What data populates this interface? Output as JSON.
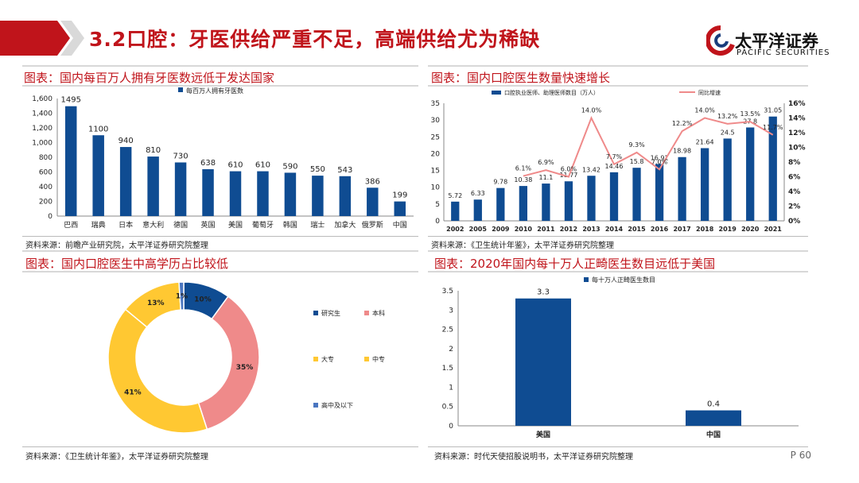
{
  "header": {
    "title": "3.2口腔：牙医供给严重不足，高端供给尤为稀缺",
    "logo_name": "太平洋证券",
    "logo_sub": "PACIFIC SECURITIES"
  },
  "panels": [
    {
      "title": "图表：国内每百万人拥有牙医数远低于发达国家",
      "source": "资料来源：前瞻产业研究院，太平洋证券研究院整理"
    },
    {
      "title": "图表：国内口腔医生数量快速增长",
      "source": "资料来源：《卫生统计年鉴》，太平洋证券研究院整理"
    },
    {
      "title": "图表：国内口腔医生中高学历占比较低",
      "source": "资料来源：《卫生统计年鉴》，太平洋证券研究院整理"
    },
    {
      "title": "图表：2020年国内每十万人正畸医生数目远低于美国",
      "source": "资料来源：时代天使招股说明书，太平洋证券研究院整理"
    }
  ],
  "page_number": "P 60",
  "colors": {
    "accent_red": "#c0141b",
    "bar_blue": "#0f4c92",
    "line_pink": "#ef8a8a",
    "pie_yellow": "#ffc832"
  },
  "chart_data": [
    {
      "type": "bar",
      "title": "",
      "categories": [
        "巴西",
        "瑞典",
        "日本",
        "意大利",
        "德国",
        "英国",
        "美国",
        "葡萄牙",
        "韩国",
        "瑞士",
        "加拿大",
        "俄罗斯",
        "中国"
      ],
      "series": [
        {
          "name": "每百万人拥有牙医数",
          "values": [
            1495,
            1100,
            940,
            810,
            730,
            638,
            610,
            610,
            590,
            550,
            543,
            386,
            199
          ]
        }
      ],
      "ylim": [
        0,
        1600
      ],
      "yticks": [
        "0",
        "200",
        "400",
        "600",
        "800",
        "1,000",
        "1,200",
        "1,400",
        "1,600"
      ],
      "legend": "top-center"
    },
    {
      "type": "bar",
      "title": "",
      "categories": [
        "2002",
        "2005",
        "2009",
        "2010",
        "2011",
        "2012",
        "2013",
        "2014",
        "2015",
        "2016",
        "2017",
        "2018",
        "2019",
        "2020",
        "2021"
      ],
      "series": [
        {
          "name": "口腔执业医师、助理医师数目（万人）",
          "values": [
            5.72,
            6.33,
            9.78,
            10.38,
            11.1,
            11.77,
            13.42,
            14.46,
            15.8,
            16.91,
            18.98,
            21.64,
            24.5,
            27.8,
            31.05
          ],
          "labels": [
            "5.72",
            "6.33",
            "9.78",
            "10.38",
            "11.1",
            "11.77",
            "13.42",
            "14.46",
            "15.8",
            "16.91",
            "18.98",
            "21.64",
            "24.5",
            "27.8",
            "31.05"
          ]
        },
        {
          "name": "同比增速",
          "type": "line",
          "axis": "right",
          "x": [
            "2010",
            "2011",
            "2012",
            "2013",
            "2014",
            "2015",
            "2016",
            "2017",
            "2018",
            "2019",
            "2020",
            "2021"
          ],
          "values": [
            6.1,
            6.9,
            6.0,
            14.0,
            7.7,
            9.3,
            7.0,
            12.2,
            14.0,
            13.2,
            13.5,
            11.7
          ],
          "labels": [
            "6.1%",
            "6.9%",
            "6.0%",
            "14.0%",
            "7.7%",
            "9.3%",
            "7.0%",
            "12.2%",
            "14.0%",
            "13.2%",
            "13.5%",
            "11.7%"
          ]
        }
      ],
      "ylim": [
        0,
        35
      ],
      "yticks": [
        "0",
        "5",
        "10",
        "15",
        "20",
        "25",
        "30",
        "35"
      ],
      "y2lim": [
        0,
        16
      ],
      "y2ticks": [
        "0%",
        "2%",
        "4%",
        "6%",
        "8%",
        "10%",
        "12%",
        "14%",
        "16%"
      ],
      "legend": "top-center"
    },
    {
      "type": "pie",
      "title": "",
      "labels": [
        "研究生",
        "本科",
        "大专",
        "中专",
        "高中及以下"
      ],
      "values": [
        10,
        35,
        41,
        13,
        1
      ],
      "value_labels": [
        "10%",
        "35%",
        "41%",
        "13%",
        "1%"
      ],
      "colors": [
        "#0f4c92",
        "#ef8a8a",
        "#ffc832",
        "#ffc832",
        "#4a76c0"
      ],
      "legend": "right"
    },
    {
      "type": "bar",
      "title": "",
      "categories": [
        "美国",
        "中国"
      ],
      "series": [
        {
          "name": "每十万人正畸医生数目",
          "values": [
            3.3,
            0.4
          ],
          "labels": [
            "3.3",
            "0.4"
          ]
        }
      ],
      "ylim": [
        0,
        3.5
      ],
      "yticks": [
        "0",
        "0.5",
        "1",
        "1.5",
        "2",
        "2.5",
        "3",
        "3.5"
      ],
      "legend": "top-left"
    }
  ]
}
